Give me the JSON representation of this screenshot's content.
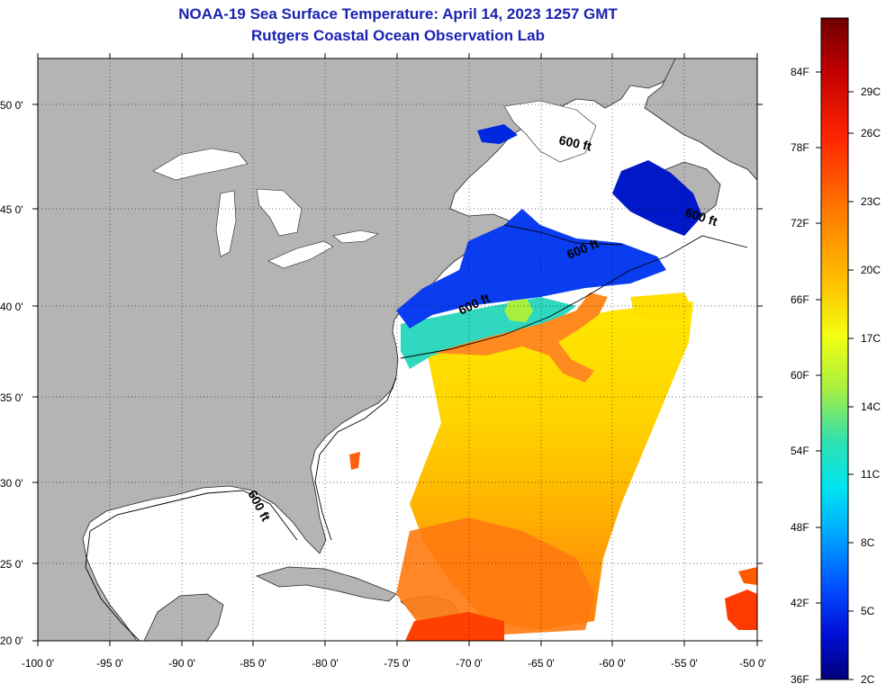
{
  "title": {
    "line1": "NOAA-19 Sea Surface Temperature:  April 14, 2023 1257 GMT",
    "line2": "Rutgers Coastal Ocean Observation Lab"
  },
  "map": {
    "lon_labels": [
      "-100 0'",
      "-95 0'",
      "-90 0'",
      "-85 0'",
      "-80 0'",
      "-75 0'",
      "-70 0'",
      "-65 0'",
      "-60 0'",
      "-55 0'",
      "-50 0'"
    ],
    "lat_labels": [
      "50 0'",
      "45 0'",
      "40 0'",
      "35 0'",
      "30 0'",
      "25 0'",
      "20 0'"
    ],
    "contour_labels": [
      "600 ft",
      "600 ft",
      "600 ft",
      "600 ft",
      "600 ft"
    ],
    "land_color": "#b4b4b4",
    "ocean_no_data_color": "#ffffff"
  },
  "colorbar": {
    "fahrenheit_labels": [
      "84F",
      "78F",
      "72F",
      "66F",
      "60F",
      "54F",
      "48F",
      "42F",
      "36F"
    ],
    "celsius_labels": [
      "29C",
      "26C",
      "23C",
      "20C",
      "17C",
      "14C",
      "11C",
      "8C",
      "5C",
      "2C"
    ],
    "colors_top_to_bottom": [
      "#7a0000",
      "#c80000",
      "#ff2000",
      "#ff7a00",
      "#ffb000",
      "#ffe600",
      "#e6ff20",
      "#a0f040",
      "#40e0a0",
      "#00e0e0",
      "#00a0ff",
      "#0050ff",
      "#0010e0",
      "#000090"
    ]
  }
}
